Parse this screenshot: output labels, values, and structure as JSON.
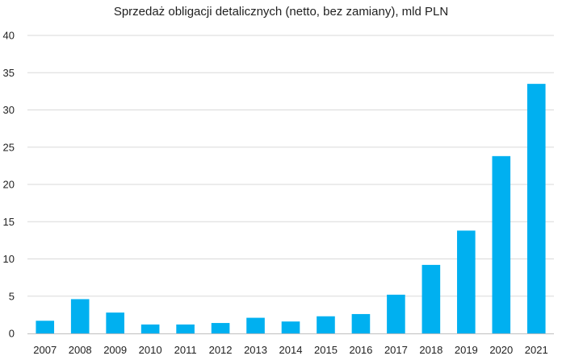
{
  "chart_data": {
    "type": "bar",
    "title": "Sprzedaż obligacji detalicznych (netto, bez zamiany), mld PLN",
    "xlabel": "",
    "ylabel": "",
    "categories": [
      "2007",
      "2008",
      "2009",
      "2010",
      "2011",
      "2012",
      "2013",
      "2014",
      "2015",
      "2016",
      "2017",
      "2018",
      "2019",
      "2020",
      "2021"
    ],
    "values": [
      1.7,
      4.6,
      2.8,
      1.2,
      1.2,
      1.4,
      2.1,
      1.6,
      2.3,
      2.6,
      5.2,
      9.2,
      13.8,
      23.8,
      33.5
    ],
    "ylim": [
      0,
      40
    ],
    "yticks": [
      0,
      5,
      10,
      15,
      20,
      25,
      30,
      35,
      40
    ],
    "grid": true,
    "bar_color": "#00B0F0",
    "grid_color": "#D9D9D9",
    "axis_color": "#BFBFBF"
  }
}
